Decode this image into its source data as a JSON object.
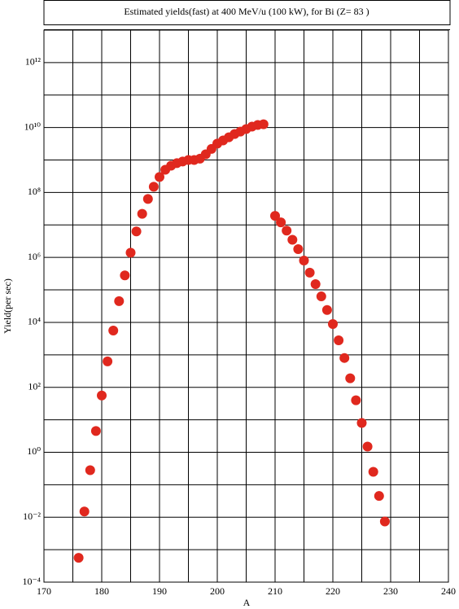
{
  "chart_data": {
    "type": "scatter",
    "title": "Estimated yields(fast) at 400 MeV/u (100 kW), for Bi (Z= 83 )",
    "x_label": "A",
    "y_label": "Yield(per sec)",
    "log_y": true,
    "grid": true,
    "xlim": [
      170,
      240
    ],
    "xticks": [
      170,
      180,
      190,
      200,
      210,
      220,
      230,
      240
    ],
    "minor_xticks": [
      175,
      185,
      195,
      205,
      215,
      225,
      235
    ],
    "ylim": [
      0.0001,
      10000000000000
    ],
    "yticks": [
      {
        "value": 0.0001,
        "label": "10⁻⁴"
      },
      {
        "value": 0.01,
        "label": "10⁻²"
      },
      {
        "value": 1,
        "label": "10⁰"
      },
      {
        "value": 100,
        "label": "10²"
      },
      {
        "value": 10000,
        "label": "10⁴"
      },
      {
        "value": 1000000,
        "label": "10⁶"
      },
      {
        "value": 100000000,
        "label": "10⁸"
      },
      {
        "value": 10000000000,
        "label": "10¹⁰"
      },
      {
        "value": 1000000000000,
        "label": "10¹²"
      }
    ],
    "minor_yticks": [
      0.001,
      0.1,
      10,
      1000,
      100000,
      10000000,
      1000000000,
      100000000000
    ],
    "series": [
      {
        "color": "#e0281e",
        "x": [
          176,
          177,
          178,
          179,
          180,
          181,
          182,
          183,
          184,
          185,
          186,
          187,
          188,
          189,
          190,
          191,
          192,
          193,
          194,
          195,
          196,
          197,
          198,
          199,
          200,
          201,
          202,
          203,
          204,
          205,
          206,
          207,
          208,
          210,
          211,
          212,
          213,
          214,
          215,
          216,
          217,
          218,
          219,
          220,
          221,
          222,
          223,
          224,
          225,
          226,
          227,
          228,
          229
        ],
        "values": [
          0.00056,
          0.015,
          0.28,
          4.5,
          56,
          630,
          5600,
          45000,
          280000,
          1400000,
          6300000,
          22000000,
          63000000,
          150000000,
          300000000,
          500000000,
          670000000,
          800000000,
          900000000,
          1000000000,
          1000000000,
          1100000000,
          1500000000,
          2200000000,
          3200000000,
          4000000000,
          5000000000,
          6300000000,
          7500000000,
          9000000000,
          10700000000,
          12000000000,
          12600000000,
          19000000,
          12000000,
          6700000,
          3500000,
          1800000,
          800000,
          340000,
          150000,
          63000,
          24000,
          8900,
          2800,
          800,
          190,
          40,
          8,
          1.5,
          0.25,
          0.045,
          0.0074
        ]
      }
    ]
  }
}
